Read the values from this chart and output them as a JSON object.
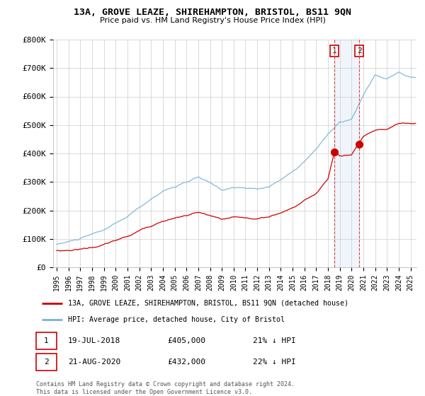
{
  "title": "13A, GROVE LEAZE, SHIREHAMPTON, BRISTOL, BS11 9QN",
  "subtitle": "Price paid vs. HM Land Registry's House Price Index (HPI)",
  "legend_label_red": "13A, GROVE LEAZE, SHIREHAMPTON, BRISTOL, BS11 9QN (detached house)",
  "legend_label_blue": "HPI: Average price, detached house, City of Bristol",
  "footnote": "Contains HM Land Registry data © Crown copyright and database right 2024.\nThis data is licensed under the Open Government Licence v3.0.",
  "annotation1_date": "19-JUL-2018",
  "annotation1_price": "£405,000",
  "annotation1_hpi": "21% ↓ HPI",
  "annotation2_date": "21-AUG-2020",
  "annotation2_price": "£432,000",
  "annotation2_hpi": "22% ↓ HPI",
  "ylim": [
    0,
    800000
  ],
  "yticks": [
    0,
    100000,
    200000,
    300000,
    400000,
    500000,
    600000,
    700000,
    800000
  ],
  "ytick_labels": [
    "£0",
    "£100K",
    "£200K",
    "£300K",
    "£400K",
    "£500K",
    "£600K",
    "£700K",
    "£800K"
  ],
  "red_color": "#cc0000",
  "blue_color": "#7ab0d4",
  "marker1_x": 2018.54,
  "marker1_y": 405000,
  "marker2_x": 2020.65,
  "marker2_y": 432000,
  "vline1_x": 2018.54,
  "vline2_x": 2020.65,
  "xlim_left": 1994.7,
  "xlim_right": 2025.5
}
